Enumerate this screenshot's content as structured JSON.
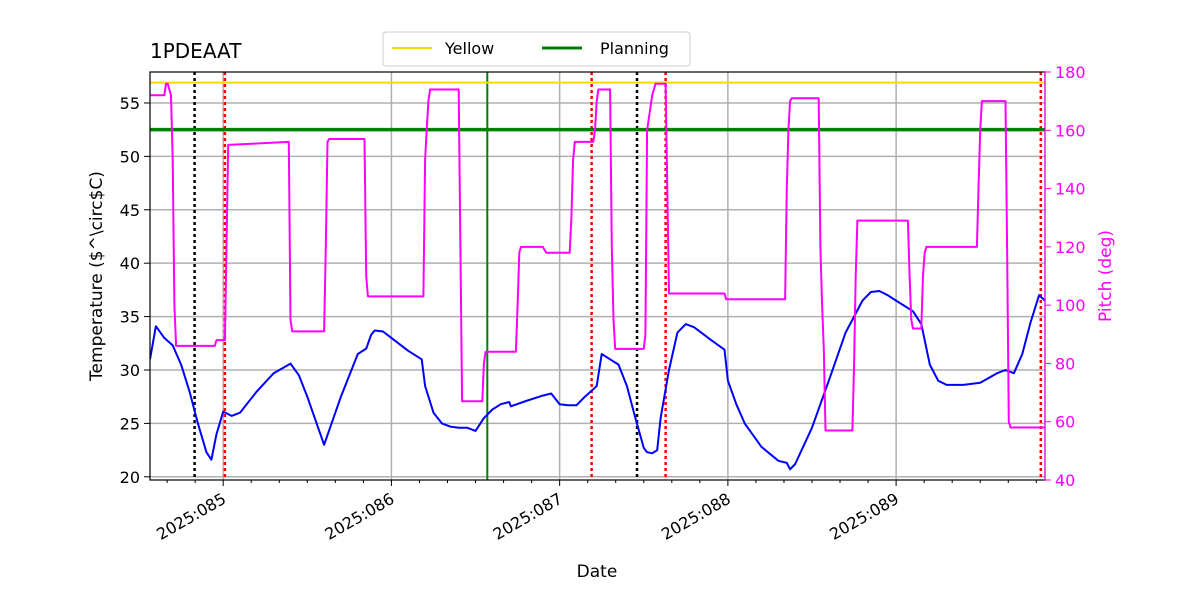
{
  "chart_data": {
    "type": "line",
    "title": "1PDEAAT",
    "xlabel": "Date",
    "ylabel_left": "Temperature ($^\\circ$C)",
    "ylabel_right": "Pitch (deg)",
    "x_axis_type": "day-of-year",
    "xlim": [
      84.565,
      89.885
    ],
    "ylim_left": [
      19.7,
      57.9
    ],
    "ylim_right": [
      40,
      180
    ],
    "x_ticks": [
      {
        "value": 85,
        "label": "2025:085"
      },
      {
        "value": 86,
        "label": "2025:086"
      },
      {
        "value": 87,
        "label": "2025:087"
      },
      {
        "value": 88,
        "label": "2025:088"
      },
      {
        "value": 89,
        "label": "2025:089"
      }
    ],
    "y_ticks_left": [
      20,
      25,
      30,
      35,
      40,
      45,
      50,
      55
    ],
    "y_ticks_right": [
      40,
      60,
      80,
      100,
      120,
      140,
      160,
      180
    ],
    "grid": true,
    "legend": {
      "placement": "top-center",
      "entries": [
        {
          "name": "Yellow",
          "color": "#ffd700"
        },
        {
          "name": "Planning",
          "color": "#008000"
        }
      ]
    },
    "colors": {
      "temperature": "#0000ff",
      "pitch": "#ff00ff",
      "yellow": "#ffd700",
      "planning": "#008000",
      "red_markers": "#ff0000",
      "black_markers": "#000000",
      "grid": "#b0b0b0",
      "right_axis": "#ff00ff"
    },
    "yellow_limit": 56.9,
    "planning_limit": 52.5,
    "planning_vertical_x": 86.57,
    "red_marker_x": [
      85.01,
      87.19,
      87.63,
      89.86
    ],
    "black_marker_x": [
      84.83,
      87.46
    ],
    "series": [
      {
        "name": "Temperature",
        "axis": "left",
        "x": [
          84.565,
          84.6,
          84.65,
          84.7,
          84.75,
          84.8,
          84.85,
          84.9,
          84.93,
          84.96,
          85.0,
          85.05,
          85.1,
          85.2,
          85.3,
          85.4,
          85.45,
          85.5,
          85.6,
          85.7,
          85.8,
          85.85,
          85.88,
          85.9,
          85.95,
          86.0,
          86.1,
          86.18,
          86.2,
          86.25,
          86.3,
          86.35,
          86.4,
          86.45,
          86.5,
          86.55,
          86.6,
          86.65,
          86.7,
          86.71,
          86.8,
          86.9,
          86.95,
          87.0,
          87.05,
          87.1,
          87.15,
          87.2,
          87.22,
          87.25,
          87.3,
          87.35,
          87.4,
          87.45,
          87.5,
          87.52,
          87.55,
          87.58,
          87.6,
          87.65,
          87.7,
          87.75,
          87.8,
          87.9,
          87.98,
          88.0,
          88.05,
          88.1,
          88.2,
          88.3,
          88.35,
          88.37,
          88.4,
          88.5,
          88.6,
          88.7,
          88.8,
          88.85,
          88.9,
          88.95,
          89.0,
          89.1,
          89.15,
          89.2,
          89.25,
          89.3,
          89.4,
          89.5,
          89.6,
          89.65,
          89.7,
          89.75,
          89.8,
          89.85,
          89.885
        ],
        "y": [
          31.0,
          34.1,
          33.0,
          32.3,
          30.5,
          28.0,
          25.0,
          22.3,
          21.6,
          24.0,
          26.1,
          25.7,
          26.0,
          28.0,
          29.7,
          30.6,
          29.5,
          27.5,
          23.0,
          27.5,
          31.5,
          32.0,
          33.3,
          33.7,
          33.6,
          33.0,
          31.8,
          31.0,
          28.5,
          26.0,
          25.0,
          24.7,
          24.6,
          24.6,
          24.3,
          25.5,
          26.3,
          26.8,
          27.0,
          26.6,
          27.1,
          27.6,
          27.8,
          26.8,
          26.7,
          26.7,
          27.5,
          28.2,
          28.5,
          31.5,
          31.0,
          30.5,
          28.5,
          25.5,
          22.7,
          22.3,
          22.2,
          22.5,
          25.5,
          30.0,
          33.5,
          34.3,
          34.0,
          32.8,
          31.9,
          29.0,
          26.8,
          25.0,
          22.8,
          21.5,
          21.3,
          20.7,
          21.2,
          24.6,
          29.0,
          33.5,
          36.5,
          37.3,
          37.4,
          37.0,
          36.5,
          35.5,
          34.3,
          30.5,
          29.0,
          28.6,
          28.6,
          28.8,
          29.7,
          30.0,
          29.7,
          31.5,
          34.5,
          37.0,
          36.5
        ]
      },
      {
        "name": "Pitch",
        "axis": "right",
        "x": [
          84.565,
          84.65,
          84.66,
          84.67,
          84.69,
          84.7,
          84.71,
          84.72,
          84.8,
          84.9,
          84.95,
          84.96,
          85.0,
          85.01,
          85.02,
          85.03,
          85.39,
          85.4,
          85.41,
          85.6,
          85.61,
          85.62,
          85.63,
          85.84,
          85.85,
          85.86,
          86.18,
          86.19,
          86.2,
          86.21,
          86.22,
          86.23,
          86.24,
          86.25,
          86.4,
          86.41,
          86.42,
          86.43,
          86.54,
          86.55,
          86.56,
          86.57,
          86.74,
          86.75,
          86.76,
          86.77,
          86.9,
          86.92,
          87.06,
          87.07,
          87.08,
          87.09,
          87.2,
          87.21,
          87.22,
          87.23,
          87.3,
          87.31,
          87.32,
          87.33,
          87.5,
          87.51,
          87.52,
          87.55,
          87.57,
          87.63,
          87.64,
          87.65,
          87.66,
          87.67,
          87.68,
          87.98,
          87.99,
          88.0,
          88.34,
          88.35,
          88.36,
          88.37,
          88.38,
          88.54,
          88.55,
          88.56,
          88.57,
          88.58,
          88.59,
          88.74,
          88.75,
          88.76,
          88.77,
          88.78,
          89.07,
          89.08,
          89.09,
          89.1,
          89.15,
          89.16,
          89.17,
          89.18,
          89.48,
          89.49,
          89.5,
          89.51,
          89.52,
          89.65,
          89.66,
          89.67,
          89.68,
          89.85,
          89.86,
          89.885
        ],
        "y": [
          172,
          172,
          176,
          176,
          172,
          150,
          100,
          86,
          86,
          86,
          86,
          88,
          88,
          88,
          120,
          155,
          156,
          95,
          91,
          91,
          120,
          156,
          157,
          157,
          110,
          103,
          103,
          103,
          150,
          160,
          170,
          174,
          174,
          174,
          174,
          120,
          67,
          67,
          67,
          80,
          84,
          84,
          84,
          100,
          118,
          120,
          120,
          118,
          118,
          130,
          150,
          156,
          156,
          160,
          170,
          174,
          174,
          120,
          95,
          85,
          85,
          90,
          160,
          172,
          176,
          176,
          140,
          104,
          104,
          104,
          104,
          104,
          102,
          102,
          102,
          140,
          160,
          170,
          171,
          171,
          120,
          100,
          85,
          57,
          57,
          57,
          80,
          110,
          129,
          129,
          129,
          110,
          95,
          92,
          92,
          110,
          118,
          120,
          120,
          140,
          160,
          170,
          170,
          170,
          120,
          60,
          58,
          58,
          58,
          58
        ]
      }
    ]
  }
}
